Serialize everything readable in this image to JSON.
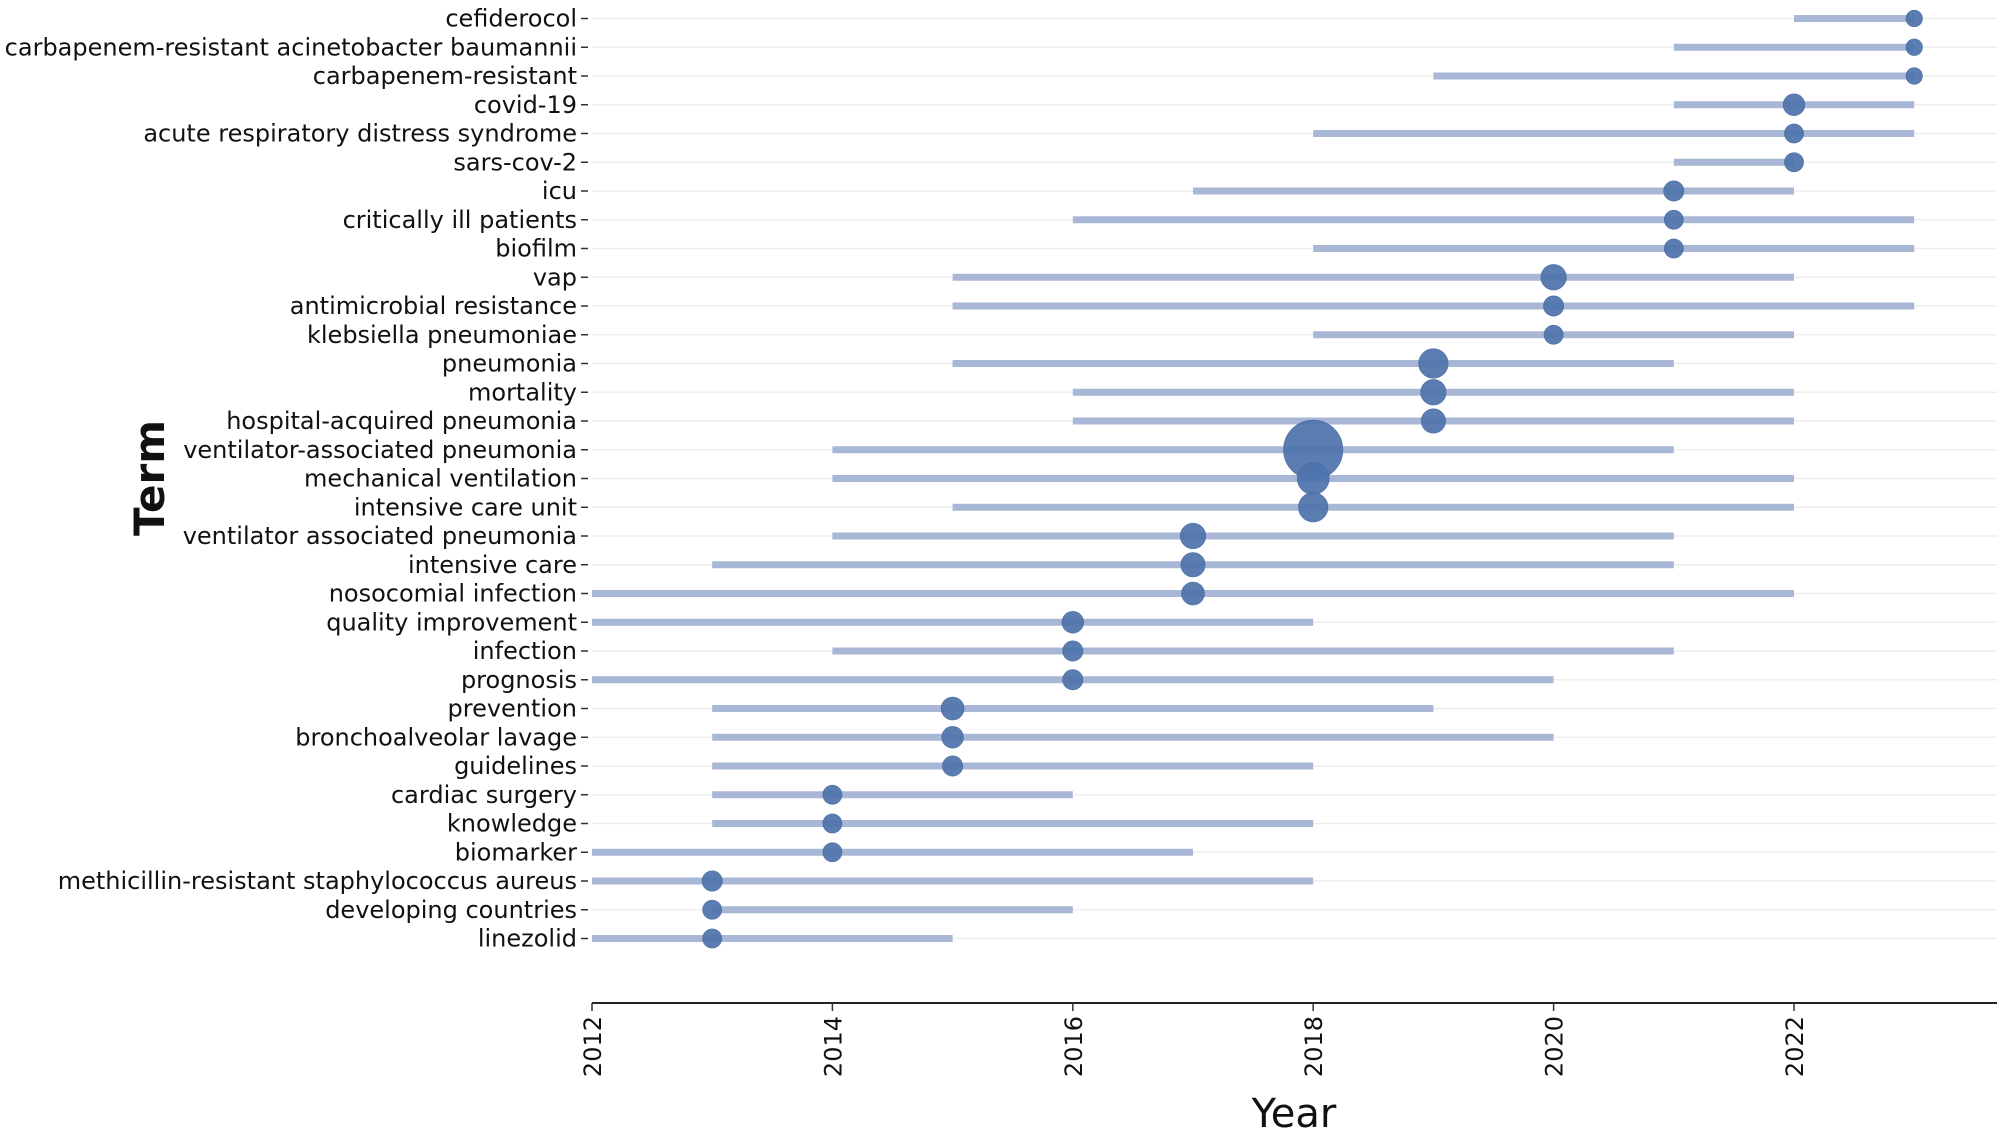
{
  "chart_data": {
    "type": "scatter",
    "subtype": "trend-topics-range-dot",
    "title": "",
    "xlabel": "Year",
    "ylabel": "Term",
    "xlim": [
      2012,
      2023.7
    ],
    "x_ticks": [
      2012,
      2014,
      2016,
      2018,
      2020,
      2022
    ],
    "colors": {
      "bar": "#a9b7d6",
      "point": "#4f74ad",
      "axis": "#222222",
      "grid": "#eeeeee"
    },
    "terms": [
      {
        "term": "cefiderocol",
        "start": 2022,
        "end": 2023,
        "median": 2023,
        "size": 7
      },
      {
        "term": "carbapenem-resistant acinetobacter baumannii",
        "start": 2021,
        "end": 2023,
        "median": 2023,
        "size": 7
      },
      {
        "term": "carbapenem-resistant",
        "start": 2019,
        "end": 2023,
        "median": 2023,
        "size": 7
      },
      {
        "term": "covid-19",
        "start": 2021,
        "end": 2023,
        "median": 2022,
        "size": 11
      },
      {
        "term": "acute respiratory distress syndrome",
        "start": 2018,
        "end": 2023,
        "median": 2022,
        "size": 9
      },
      {
        "term": "sars-cov-2",
        "start": 2021,
        "end": 2022,
        "median": 2022,
        "size": 9
      },
      {
        "term": "icu",
        "start": 2017,
        "end": 2022,
        "median": 2021,
        "size": 10
      },
      {
        "term": "critically ill patients",
        "start": 2016,
        "end": 2023,
        "median": 2021,
        "size": 9
      },
      {
        "term": "biofilm",
        "start": 2018,
        "end": 2023,
        "median": 2021,
        "size": 9
      },
      {
        "term": "vap",
        "start": 2015,
        "end": 2022,
        "median": 2020,
        "size": 14
      },
      {
        "term": "antimicrobial resistance",
        "start": 2015,
        "end": 2023,
        "median": 2020,
        "size": 10
      },
      {
        "term": "klebsiella pneumoniae",
        "start": 2018,
        "end": 2022,
        "median": 2020,
        "size": 9
      },
      {
        "term": "pneumonia",
        "start": 2015,
        "end": 2021,
        "median": 2019,
        "size": 17
      },
      {
        "term": "mortality",
        "start": 2016,
        "end": 2022,
        "median": 2019,
        "size": 14
      },
      {
        "term": "hospital-acquired pneumonia",
        "start": 2016,
        "end": 2022,
        "median": 2019,
        "size": 13
      },
      {
        "term": "ventilator-associated pneumonia",
        "start": 2014,
        "end": 2021,
        "median": 2018,
        "size": 40
      },
      {
        "term": "mechanical ventilation",
        "start": 2014,
        "end": 2022,
        "median": 2018,
        "size": 19
      },
      {
        "term": "intensive care unit",
        "start": 2015,
        "end": 2022,
        "median": 2018,
        "size": 17
      },
      {
        "term": "ventilator associated pneumonia",
        "start": 2014,
        "end": 2021,
        "median": 2017,
        "size": 14
      },
      {
        "term": "intensive care",
        "start": 2013,
        "end": 2021,
        "median": 2017,
        "size": 13
      },
      {
        "term": "nosocomial infection",
        "start": 2012,
        "end": 2022,
        "median": 2017,
        "size": 12
      },
      {
        "term": "quality improvement",
        "start": 2012,
        "end": 2018,
        "median": 2016,
        "size": 11
      },
      {
        "term": "infection",
        "start": 2014,
        "end": 2021,
        "median": 2016,
        "size": 10
      },
      {
        "term": "prognosis",
        "start": 2012,
        "end": 2020,
        "median": 2016,
        "size": 10
      },
      {
        "term": "prevention",
        "start": 2013,
        "end": 2019,
        "median": 2015,
        "size": 12
      },
      {
        "term": "bronchoalveolar lavage",
        "start": 2013,
        "end": 2020,
        "median": 2015,
        "size": 11
      },
      {
        "term": "guidelines",
        "start": 2013,
        "end": 2018,
        "median": 2015,
        "size": 10
      },
      {
        "term": "cardiac surgery",
        "start": 2013,
        "end": 2016,
        "median": 2014,
        "size": 9
      },
      {
        "term": "knowledge",
        "start": 2013,
        "end": 2018,
        "median": 2014,
        "size": 9
      },
      {
        "term": "biomarker",
        "start": 2012,
        "end": 2017,
        "median": 2014,
        "size": 9
      },
      {
        "term": "methicillin-resistant staphylococcus aureus",
        "start": 2012,
        "end": 2018,
        "median": 2013,
        "size": 10
      },
      {
        "term": "developing countries",
        "start": 2013,
        "end": 2016,
        "median": 2013,
        "size": 9
      },
      {
        "term": "linezolid",
        "start": 2012,
        "end": 2015,
        "median": 2013,
        "size": 9
      }
    ]
  }
}
